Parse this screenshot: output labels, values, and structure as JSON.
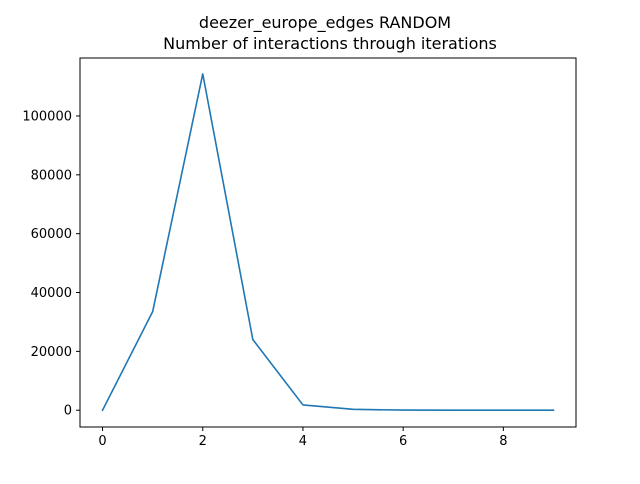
{
  "chart_data": {
    "type": "line",
    "title": "deezer_europe_edges RANDOM\nNumber of interactions through iterations",
    "title_lines": [
      "deezer_europe_edges RANDOM",
      "Number of interactions through iterations"
    ],
    "xlabel": "",
    "ylabel": "",
    "xlim": [
      -0.45,
      9.45
    ],
    "ylim": [
      -5700,
      119700
    ],
    "grid": false,
    "legend": "none",
    "x_ticks": [
      0,
      2,
      4,
      6,
      8
    ],
    "x_tick_labels": [
      "0",
      "2",
      "4",
      "6",
      "8"
    ],
    "y_ticks": [
      0,
      20000,
      40000,
      60000,
      80000,
      100000
    ],
    "y_tick_labels": [
      "0",
      "20000",
      "40000",
      "60000",
      "80000",
      "100000"
    ],
    "series": [
      {
        "color": "#1f77b4",
        "x": [
          0,
          1,
          2,
          3,
          4,
          5,
          6,
          7,
          8,
          9
        ],
        "y": [
          0,
          33500,
          114300,
          24000,
          1800,
          300,
          50,
          10,
          5,
          0
        ]
      }
    ]
  }
}
